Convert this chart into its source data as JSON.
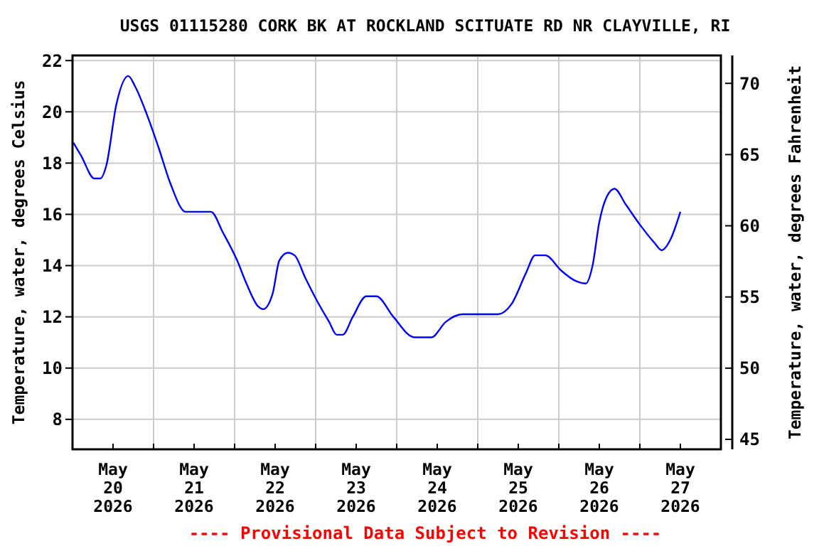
{
  "chart_data": {
    "type": "line",
    "title": "USGS 01115280 CORK BK AT ROCKLAND SCITUATE RD NR CLAYVILLE, RI",
    "ylabel": "Temperature, water, degrees Celsius",
    "y2label": "Temperature, water, degrees Fahrenheit",
    "annotations": [
      "---- Provisional Data Subject to Revision ----"
    ],
    "x": [
      "2026-05-20T00:15",
      "2026-05-20T02:30",
      "2026-05-20T06:30",
      "2026-05-20T08:15",
      "2026-05-20T10:00",
      "2026-05-20T13:00",
      "2026-05-20T16:30",
      "2026-05-20T18:30",
      "2026-05-20T22:00",
      "2026-05-21T01:30",
      "2026-05-21T05:00",
      "2026-05-21T09:30",
      "2026-05-21T17:00",
      "2026-05-21T20:30",
      "2026-05-22T00:45",
      "2026-05-22T03:30",
      "2026-05-22T07:00",
      "2026-05-22T08:30",
      "2026-05-22T11:15",
      "2026-05-22T13:15",
      "2026-05-22T15:45",
      "2026-05-22T17:45",
      "2026-05-22T21:00",
      "2026-05-23T00:30",
      "2026-05-23T04:00",
      "2026-05-23T06:15",
      "2026-05-23T08:00",
      "2026-05-23T11:00",
      "2026-05-23T15:00",
      "2026-05-23T18:00",
      "2026-05-23T23:00",
      "2026-05-24T05:15",
      "2026-05-24T10:15",
      "2026-05-24T14:30",
      "2026-05-24T19:30",
      "2026-05-25T06:00",
      "2026-05-25T10:00",
      "2026-05-25T14:15",
      "2026-05-25T17:00",
      "2026-05-25T20:00",
      "2026-05-26T00:45",
      "2026-05-26T05:00",
      "2026-05-26T08:00",
      "2026-05-26T10:00",
      "2026-05-26T12:00",
      "2026-05-26T14:15",
      "2026-05-26T16:30",
      "2026-05-26T19:45",
      "2026-05-27T00:00",
      "2026-05-27T04:15",
      "2026-05-27T06:30",
      "2026-05-27T09:00",
      "2026-05-27T12:00"
    ],
    "series": [
      {
        "color": "#0000ff",
        "values": [
          18.8,
          18.3,
          17.4,
          17.4,
          17.9,
          20.3,
          21.4,
          21.0,
          19.9,
          18.6,
          17.2,
          16.1,
          16.1,
          15.3,
          14.2,
          13.3,
          12.4,
          12.3,
          12.9,
          14.2,
          14.5,
          14.4,
          13.5,
          12.6,
          11.8,
          11.3,
          11.3,
          12.0,
          12.8,
          12.8,
          12.0,
          11.2,
          11.2,
          11.8,
          12.1,
          12.1,
          12.5,
          13.7,
          14.4,
          14.4,
          13.8,
          13.4,
          13.3,
          14.0,
          15.7,
          16.7,
          17.0,
          16.4,
          15.6,
          14.9,
          14.6,
          15.0,
          16.1
        ]
      }
    ],
    "xlim": [
      "2026-05-20T00:00",
      "2026-05-28T00:00"
    ],
    "xticks": [
      {
        "value": "2026-05-20T00:00",
        "label": null
      },
      {
        "value": "2026-05-20T12:00",
        "label": "May\n20\n2026"
      },
      {
        "value": "2026-05-21T00:00",
        "label": null
      },
      {
        "value": "2026-05-21T12:00",
        "label": "May\n21\n2026"
      },
      {
        "value": "2026-05-22T00:00",
        "label": null
      },
      {
        "value": "2026-05-22T12:00",
        "label": "May\n22\n2026"
      },
      {
        "value": "2026-05-23T00:00",
        "label": null
      },
      {
        "value": "2026-05-23T12:00",
        "label": "May\n23\n2026"
      },
      {
        "value": "2026-05-24T00:00",
        "label": null
      },
      {
        "value": "2026-05-24T12:00",
        "label": "May\n24\n2026"
      },
      {
        "value": "2026-05-25T00:00",
        "label": null
      },
      {
        "value": "2026-05-25T12:00",
        "label": "May\n25\n2026"
      },
      {
        "value": "2026-05-26T00:00",
        "label": null
      },
      {
        "value": "2026-05-26T12:00",
        "label": "May\n26\n2026"
      },
      {
        "value": "2026-05-27T00:00",
        "label": null
      },
      {
        "value": "2026-05-27T12:00",
        "label": "May\n27\n2026"
      },
      {
        "value": "2026-05-28T00:00",
        "label": null
      }
    ],
    "ylim": [
      6.83,
      22.2
    ],
    "yticks": [
      8,
      10,
      12,
      14,
      16,
      18,
      20,
      22
    ],
    "y2lim": [
      44.3,
      71.96
    ],
    "y2ticks": [
      45,
      50,
      55,
      60,
      65,
      70
    ],
    "grid": true,
    "marker": "none",
    "line_style": "solid"
  }
}
